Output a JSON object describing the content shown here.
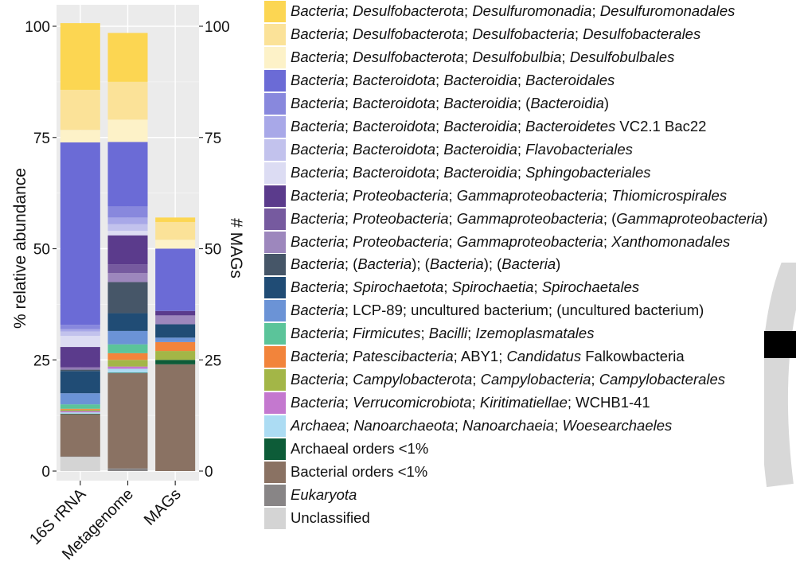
{
  "chart_data": {
    "type": "bar",
    "stacked": true,
    "categories": [
      "16S rRNA",
      "Metagenome",
      "MAGs"
    ],
    "ylabel_left": "% relative abundance",
    "ylabel_right": "# MAGs",
    "ylim": [
      0,
      100
    ],
    "yticks": [
      0,
      25,
      50,
      75,
      100
    ],
    "yticks_right": [
      0,
      25,
      50,
      75,
      100
    ],
    "grid": true,
    "legend": "right",
    "series": [
      {
        "name": "Unclassified",
        "color": "#d4d4d4",
        "values": [
          3.2,
          0,
          0
        ]
      },
      {
        "name": "Eukaryota",
        "color": "#888586",
        "values": [
          0.1,
          0.6,
          0
        ]
      },
      {
        "name": "Bacterial orders <1%",
        "color": "#8a7263",
        "values": [
          9.5,
          21.4,
          24.0
        ]
      },
      {
        "name": "Archaeal orders <1%",
        "color": "#0d5c38",
        "values": [
          0.1,
          0.1,
          1.0
        ]
      },
      {
        "name": "Archaea; Nanoarchaeota; Nanoarchaeia; Woesearchaeles",
        "color": "#acdcf3",
        "values": [
          0.3,
          0.9,
          0
        ]
      },
      {
        "name": "Bacteria; Verrucomicrobiota; Kiritimatiellae; WCHB1-41",
        "color": "#c478cf",
        "values": [
          0.3,
          0.5,
          0
        ]
      },
      {
        "name": "Bacteria; Campylobacterota; Campylobacteria; Campylobacterales",
        "color": "#a3b647",
        "values": [
          0.3,
          1.5,
          2.0
        ]
      },
      {
        "name": "Bacteria; Patescibacteria; ABY1; Candidatus Falkowbacteria",
        "color": "#f2843b",
        "values": [
          0.2,
          1.5,
          2.0
        ]
      },
      {
        "name": "Bacteria; Firmicutes; Bacilli; Izemoplasmatales",
        "color": "#5bc49a",
        "values": [
          1.0,
          2.0,
          0
        ]
      },
      {
        "name": "Bacteria; LCP-89; uncultured bacterium; (uncultured bacterium)",
        "color": "#6b93d6",
        "values": [
          2.5,
          3.0,
          1.0
        ]
      },
      {
        "name": "Bacteria; Spirochaetota; Spirochaetia; Spirochaetales",
        "color": "#204c75",
        "values": [
          5.0,
          4.0,
          3.0
        ]
      },
      {
        "name": "Bacteria; (Bacteria); (Bacteria); (Bacteria)",
        "color": "#465668",
        "values": [
          0.3,
          7.0,
          0
        ]
      },
      {
        "name": "Bacteria; Proteobacteria; Gammaproteobacteria; Xanthomonadales",
        "color": "#9d87bd",
        "values": [
          0.3,
          2.0,
          2.0
        ]
      },
      {
        "name": "Bacteria; Proteobacteria; Gammaproteobacteria; (Gammaproteobacteria)",
        "color": "#765a9f",
        "values": [
          0.3,
          2.0,
          0
        ]
      },
      {
        "name": "Bacteria; Proteobacteria; Gammaproteobacteria; Thiomicrospirales",
        "color": "#5b3b8c",
        "values": [
          4.5,
          6.5,
          1.0
        ]
      },
      {
        "name": "Bacteria; Bacteroidota; Bacteroidia; Sphingobacteriales",
        "color": "#dcdcf3",
        "values": [
          2.5,
          1.0,
          0
        ]
      },
      {
        "name": "Bacteria; Bacteroidota; Bacteroidia; Flavobacteriales",
        "color": "#c2c2ed",
        "values": [
          1.0,
          1.5,
          0
        ]
      },
      {
        "name": "Bacteria; Bacteroidota; Bacteroidia; Bacteroidetes VC2.1 Bac22",
        "color": "#a8a8e8",
        "values": [
          0.5,
          1.5,
          0
        ]
      },
      {
        "name": "Bacteria; Bacteroidota; Bacteroidia; (Bacteroidia)",
        "color": "#8888dd",
        "values": [
          1.0,
          2.5,
          0
        ]
      },
      {
        "name": "Bacteria; Bacteroidota; Bacteroidia; Bacteroidales",
        "color": "#6b6bd6",
        "values": [
          41.0,
          14.5,
          14.0
        ]
      },
      {
        "name": "Bacteria; Desulfobacterota; Desulfobulbia; Desulfobulbales",
        "color": "#fdf2c8",
        "values": [
          2.8,
          5.0,
          2.0
        ]
      },
      {
        "name": "Bacteria; Desulfobacterota; Desulfobacteria; Desulfobacterales",
        "color": "#fbe298",
        "values": [
          9.0,
          8.5,
          4.0
        ]
      },
      {
        "name": "Bacteria; Desulfobacterota; Desulfuromonadia; Desulfuromonadales",
        "color": "#fcd652",
        "values": [
          15.0,
          11.0,
          1.0
        ]
      }
    ]
  },
  "legend_entries": [
    {
      "color": "#fcd652",
      "parts": [
        [
          "Bacteria",
          true
        ],
        [
          "; ",
          false
        ],
        [
          "Desulfobacterota",
          true
        ],
        [
          "; ",
          false
        ],
        [
          "Desulfuromonadia",
          true
        ],
        [
          "; ",
          false
        ],
        [
          "Desulfuromonadales",
          true
        ]
      ]
    },
    {
      "color": "#fbe298",
      "parts": [
        [
          "Bacteria",
          true
        ],
        [
          "; ",
          false
        ],
        [
          "Desulfobacterota",
          true
        ],
        [
          "; ",
          false
        ],
        [
          "Desulfobacteria",
          true
        ],
        [
          "; ",
          false
        ],
        [
          "Desulfobacterales",
          true
        ]
      ]
    },
    {
      "color": "#fdf2c8",
      "parts": [
        [
          "Bacteria",
          true
        ],
        [
          "; ",
          false
        ],
        [
          "Desulfobacterota",
          true
        ],
        [
          "; ",
          false
        ],
        [
          "Desulfobulbia",
          true
        ],
        [
          "; ",
          false
        ],
        [
          "Desulfobulbales",
          true
        ]
      ]
    },
    {
      "color": "#6b6bd6",
      "parts": [
        [
          "Bacteria",
          true
        ],
        [
          "; ",
          false
        ],
        [
          "Bacteroidota",
          true
        ],
        [
          "; ",
          false
        ],
        [
          "Bacteroidia",
          true
        ],
        [
          "; ",
          false
        ],
        [
          "Bacteroidales",
          true
        ]
      ]
    },
    {
      "color": "#8888dd",
      "parts": [
        [
          "Bacteria",
          true
        ],
        [
          "; ",
          false
        ],
        [
          "Bacteroidota",
          true
        ],
        [
          "; ",
          false
        ],
        [
          "Bacteroidia",
          true
        ],
        [
          "; (",
          false
        ],
        [
          "Bacteroidia",
          true
        ],
        [
          ")",
          false
        ]
      ]
    },
    {
      "color": "#a8a8e8",
      "parts": [
        [
          "Bacteria",
          true
        ],
        [
          "; ",
          false
        ],
        [
          "Bacteroidota",
          true
        ],
        [
          "; ",
          false
        ],
        [
          "Bacteroidia",
          true
        ],
        [
          "; ",
          false
        ],
        [
          "Bacteroidetes",
          true
        ],
        [
          " VC2.1 Bac22",
          false
        ]
      ]
    },
    {
      "color": "#c2c2ed",
      "parts": [
        [
          "Bacteria",
          true
        ],
        [
          "; ",
          false
        ],
        [
          "Bacteroidota",
          true
        ],
        [
          "; ",
          false
        ],
        [
          "Bacteroidia",
          true
        ],
        [
          "; ",
          false
        ],
        [
          "Flavobacteriales",
          true
        ]
      ]
    },
    {
      "color": "#dcdcf3",
      "parts": [
        [
          "Bacteria",
          true
        ],
        [
          "; ",
          false
        ],
        [
          "Bacteroidota",
          true
        ],
        [
          "; ",
          false
        ],
        [
          "Bacteroidia",
          true
        ],
        [
          "; ",
          false
        ],
        [
          "Sphingobacteriales",
          true
        ]
      ]
    },
    {
      "color": "#5b3b8c",
      "parts": [
        [
          "Bacteria",
          true
        ],
        [
          "; ",
          false
        ],
        [
          "Proteobacteria",
          true
        ],
        [
          "; ",
          false
        ],
        [
          "Gammaproteobacteria",
          true
        ],
        [
          "; ",
          false
        ],
        [
          "Thiomicrospirales",
          true
        ]
      ]
    },
    {
      "color": "#765a9f",
      "parts": [
        [
          "Bacteria",
          true
        ],
        [
          "; ",
          false
        ],
        [
          "Proteobacteria",
          true
        ],
        [
          "; ",
          false
        ],
        [
          "Gammaproteobacteria",
          true
        ],
        [
          "; (",
          false
        ],
        [
          "Gammaproteobacteria",
          true
        ],
        [
          ")",
          false
        ]
      ]
    },
    {
      "color": "#9d87bd",
      "parts": [
        [
          "Bacteria",
          true
        ],
        [
          "; ",
          false
        ],
        [
          "Proteobacteria",
          true
        ],
        [
          "; ",
          false
        ],
        [
          "Gammaproteobacteria",
          true
        ],
        [
          "; ",
          false
        ],
        [
          "Xanthomonadales",
          true
        ]
      ]
    },
    {
      "color": "#465668",
      "parts": [
        [
          "Bacteria",
          true
        ],
        [
          "; (",
          false
        ],
        [
          "Bacteria",
          true
        ],
        [
          "); (",
          false
        ],
        [
          "Bacteria",
          true
        ],
        [
          "); (",
          false
        ],
        [
          "Bacteria",
          true
        ],
        [
          ")",
          false
        ]
      ]
    },
    {
      "color": "#204c75",
      "parts": [
        [
          "Bacteria",
          true
        ],
        [
          "; ",
          false
        ],
        [
          "Spirochaetota",
          true
        ],
        [
          "; ",
          false
        ],
        [
          "Spirochaetia",
          true
        ],
        [
          "; ",
          false
        ],
        [
          "Spirochaetales",
          true
        ]
      ]
    },
    {
      "color": "#6b93d6",
      "parts": [
        [
          "Bacteria",
          true
        ],
        [
          "; LCP-89; uncultured bacterium; (uncultured bacterium)",
          false
        ]
      ]
    },
    {
      "color": "#5bc49a",
      "parts": [
        [
          "Bacteria",
          true
        ],
        [
          "; ",
          false
        ],
        [
          "Firmicutes",
          true
        ],
        [
          "; ",
          false
        ],
        [
          "Bacilli",
          true
        ],
        [
          "; ",
          false
        ],
        [
          "Izemoplasmatales",
          true
        ]
      ]
    },
    {
      "color": "#f2843b",
      "parts": [
        [
          "Bacteria",
          true
        ],
        [
          "; ",
          false
        ],
        [
          "Patescibacteria",
          true
        ],
        [
          "; ABY1; ",
          false
        ],
        [
          "Candidatus",
          true
        ],
        [
          " Falkowbacteria",
          false
        ]
      ]
    },
    {
      "color": "#a3b647",
      "parts": [
        [
          "Bacteria",
          true
        ],
        [
          "; ",
          false
        ],
        [
          "Campylobacterota",
          true
        ],
        [
          "; ",
          false
        ],
        [
          "Campylobacteria",
          true
        ],
        [
          "; ",
          false
        ],
        [
          "Campylobacterales",
          true
        ]
      ]
    },
    {
      "color": "#c478cf",
      "parts": [
        [
          "Bacteria",
          true
        ],
        [
          "; ",
          false
        ],
        [
          "Verrucomicrobiota",
          true
        ],
        [
          "; ",
          false
        ],
        [
          "Kiritimatiellae",
          true
        ],
        [
          "; WCHB1-41",
          false
        ]
      ]
    },
    {
      "color": "#acdcf3",
      "parts": [
        [
          "Archaea",
          true
        ],
        [
          "; ",
          false
        ],
        [
          "Nanoarchaeota",
          true
        ],
        [
          "; ",
          false
        ],
        [
          "Nanoarchaeia",
          true
        ],
        [
          "; ",
          false
        ],
        [
          "Woesearchaeles",
          true
        ]
      ]
    },
    {
      "color": "#0d5c38",
      "parts": [
        [
          "Archaeal orders <1%",
          false
        ]
      ]
    },
    {
      "color": "#8a7263",
      "parts": [
        [
          "Bacterial orders <1%",
          false
        ]
      ]
    },
    {
      "color": "#888586",
      "parts": [
        [
          "Eukaryota",
          true
        ]
      ]
    },
    {
      "color": "#d4d4d4",
      "parts": [
        [
          "Unclassified",
          false
        ]
      ]
    }
  ]
}
